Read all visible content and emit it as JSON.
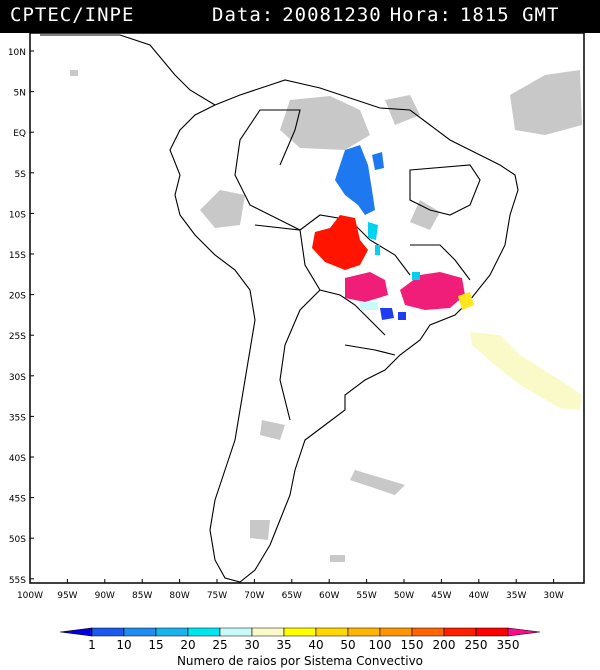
{
  "header": {
    "source": "CPTEC/INPE",
    "date_label": "Data:",
    "date_value": "20081230",
    "time_label": "Hora:",
    "time_value": "1815 GMT"
  },
  "map": {
    "lat_labels": [
      "10N",
      "5N",
      "EQ",
      "5S",
      "10S",
      "15S",
      "20S",
      "25S",
      "30S",
      "35S",
      "40S",
      "45S",
      "50S",
      "55S"
    ],
    "lon_labels": [
      "100W",
      "95W",
      "90W",
      "85W",
      "80W",
      "75W",
      "70W",
      "65W",
      "60W",
      "55W",
      "50W",
      "45W",
      "40W",
      "35W",
      "30W"
    ]
  },
  "colorbar": {
    "ticks": [
      "1",
      "10",
      "15",
      "20",
      "25",
      "30",
      "35",
      "40",
      "50",
      "100",
      "150",
      "200",
      "250",
      "350"
    ],
    "colors": [
      "#0000e0",
      "#1a5af0",
      "#1e8cf0",
      "#18b4f0",
      "#00e6f0",
      "#c8fafa",
      "#fafac8",
      "#ffff00",
      "#ffd700",
      "#ffb400",
      "#ff9600",
      "#ff6400",
      "#ff1e00",
      "#ff0000",
      "#ff0a8c"
    ],
    "label": "Numero de raios por Sistema Convectivo"
  },
  "colors": {
    "cloud": "#c8c8c8",
    "blue_system": "#1e78f0",
    "red_system": "#ff1400",
    "magenta_system": "#f01e78",
    "cyan_system": "#00d2f0",
    "yellow_system": "#ffe61e",
    "pale_system": "#fafac8"
  }
}
